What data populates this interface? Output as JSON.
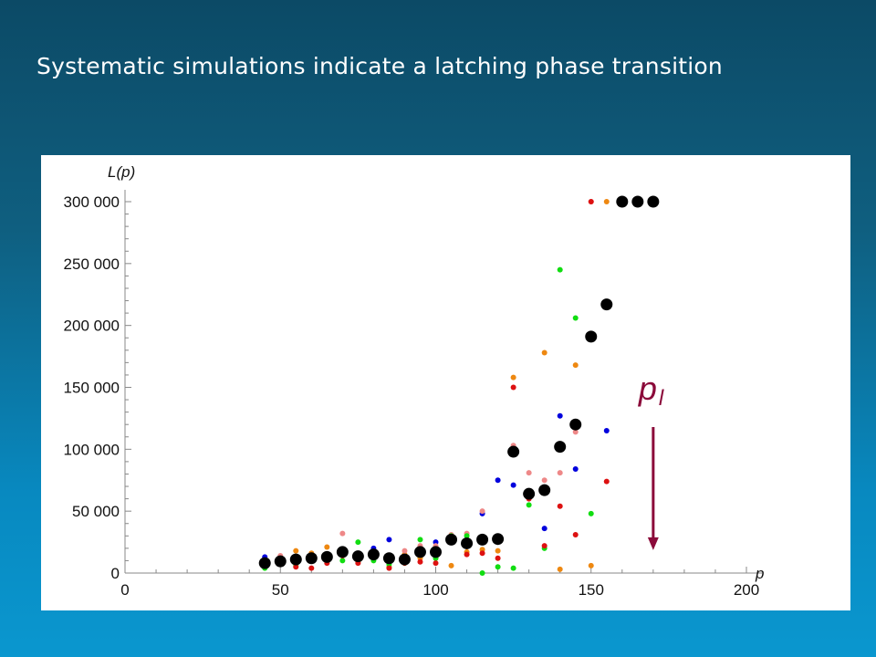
{
  "slide": {
    "title": "Systematic simulations indicate a latching phase transition"
  },
  "chart_data": {
    "type": "scatter",
    "title": "",
    "xlabel": "p",
    "ylabel": "L(p)",
    "xlim": [
      0,
      200
    ],
    "ylim": [
      0,
      300000
    ],
    "x_ticks": [
      "0",
      "50",
      "100",
      "150",
      "200"
    ],
    "y_ticks": [
      "0",
      "50 000",
      "100 000",
      "150 000",
      "200 000",
      "250 000",
      "300 000"
    ],
    "grid": false,
    "legend": "none",
    "series": [
      {
        "color": "#0000dd",
        "points": [
          [
            45,
            13000
          ],
          [
            55,
            10000
          ],
          [
            60,
            15000
          ],
          [
            65,
            12000
          ],
          [
            75,
            12000
          ],
          [
            80,
            20000
          ],
          [
            85,
            27000
          ],
          [
            95,
            17000
          ],
          [
            100,
            25000
          ],
          [
            105,
            30000
          ],
          [
            110,
            25000
          ],
          [
            115,
            48000
          ],
          [
            120,
            75000
          ],
          [
            125,
            71000
          ],
          [
            135,
            36000
          ],
          [
            140,
            127000
          ],
          [
            145,
            84000
          ],
          [
            155,
            115000
          ]
        ]
      },
      {
        "color": "#ee8811",
        "points": [
          [
            50,
            9000
          ],
          [
            55,
            18000
          ],
          [
            60,
            16000
          ],
          [
            65,
            21000
          ],
          [
            70,
            17000
          ],
          [
            75,
            9000
          ],
          [
            80,
            13000
          ],
          [
            85,
            5000
          ],
          [
            90,
            15000
          ],
          [
            95,
            12000
          ],
          [
            100,
            12000
          ],
          [
            105,
            6000
          ],
          [
            110,
            17000
          ],
          [
            115,
            19000
          ],
          [
            120,
            18000
          ],
          [
            125,
            158000
          ],
          [
            130,
            62000
          ],
          [
            135,
            178000
          ],
          [
            140,
            3000
          ],
          [
            145,
            168000
          ],
          [
            150,
            6000
          ],
          [
            155,
            300000
          ]
        ]
      },
      {
        "color": "#ee8888",
        "points": [
          [
            50,
            14000
          ],
          [
            55,
            12000
          ],
          [
            60,
            12000
          ],
          [
            65,
            15000
          ],
          [
            70,
            32000
          ],
          [
            75,
            15000
          ],
          [
            80,
            16000
          ],
          [
            85,
            10000
          ],
          [
            90,
            18000
          ],
          [
            95,
            22000
          ],
          [
            100,
            22000
          ],
          [
            105,
            31000
          ],
          [
            110,
            32000
          ],
          [
            115,
            50000
          ],
          [
            120,
            28000
          ],
          [
            125,
            103000
          ],
          [
            130,
            81000
          ],
          [
            135,
            75000
          ],
          [
            140,
            81000
          ],
          [
            145,
            114000
          ],
          [
            150,
            300000
          ]
        ]
      },
      {
        "color": "#11dd11",
        "points": [
          [
            45,
            4000
          ],
          [
            50,
            10000
          ],
          [
            55,
            6000
          ],
          [
            60,
            14000
          ],
          [
            65,
            9000
          ],
          [
            70,
            10000
          ],
          [
            75,
            25000
          ],
          [
            80,
            10000
          ],
          [
            85,
            7000
          ],
          [
            90,
            8000
          ],
          [
            95,
            27000
          ],
          [
            100,
            12000
          ],
          [
            105,
            30000
          ],
          [
            110,
            30000
          ],
          [
            115,
            0
          ],
          [
            120,
            5000
          ],
          [
            125,
            4000
          ],
          [
            130,
            55000
          ],
          [
            135,
            20000
          ],
          [
            140,
            245000
          ],
          [
            145,
            206000
          ],
          [
            150,
            48000
          ]
        ]
      },
      {
        "color": "#dd1111",
        "points": [
          [
            50,
            7000
          ],
          [
            55,
            5000
          ],
          [
            60,
            4000
          ],
          [
            65,
            8000
          ],
          [
            70,
            14000
          ],
          [
            75,
            8000
          ],
          [
            80,
            13000
          ],
          [
            85,
            4000
          ],
          [
            90,
            8000
          ],
          [
            95,
            9000
          ],
          [
            100,
            8000
          ],
          [
            105,
            25000
          ],
          [
            110,
            15000
          ],
          [
            115,
            16000
          ],
          [
            120,
            12000
          ],
          [
            125,
            150000
          ],
          [
            130,
            60000
          ],
          [
            135,
            22000
          ],
          [
            140,
            54000
          ],
          [
            145,
            31000
          ],
          [
            150,
            300000
          ],
          [
            155,
            74000
          ]
        ]
      },
      {
        "color": "#000000",
        "large": true,
        "points": [
          [
            45,
            8000
          ],
          [
            50,
            9500
          ],
          [
            55,
            11000
          ],
          [
            60,
            12000
          ],
          [
            65,
            13000
          ],
          [
            70,
            17000
          ],
          [
            75,
            13500
          ],
          [
            80,
            15000
          ],
          [
            85,
            12000
          ],
          [
            90,
            11000
          ],
          [
            95,
            17000
          ],
          [
            100,
            17000
          ],
          [
            105,
            27000
          ],
          [
            110,
            24000
          ],
          [
            115,
            27000
          ],
          [
            120,
            27500
          ],
          [
            125,
            98000
          ],
          [
            130,
            64000
          ],
          [
            135,
            67000
          ],
          [
            140,
            102000
          ],
          [
            145,
            120000
          ],
          [
            150,
            191000
          ],
          [
            155,
            217000
          ],
          [
            160,
            300000
          ],
          [
            165,
            300000
          ],
          [
            170,
            300000
          ]
        ]
      }
    ],
    "annotations": [
      {
        "text": "p",
        "subscript": "l",
        "x": 170,
        "arrow_from_y": 115000,
        "arrow_to_y": 20000,
        "color": "#8b0a3a"
      }
    ]
  }
}
